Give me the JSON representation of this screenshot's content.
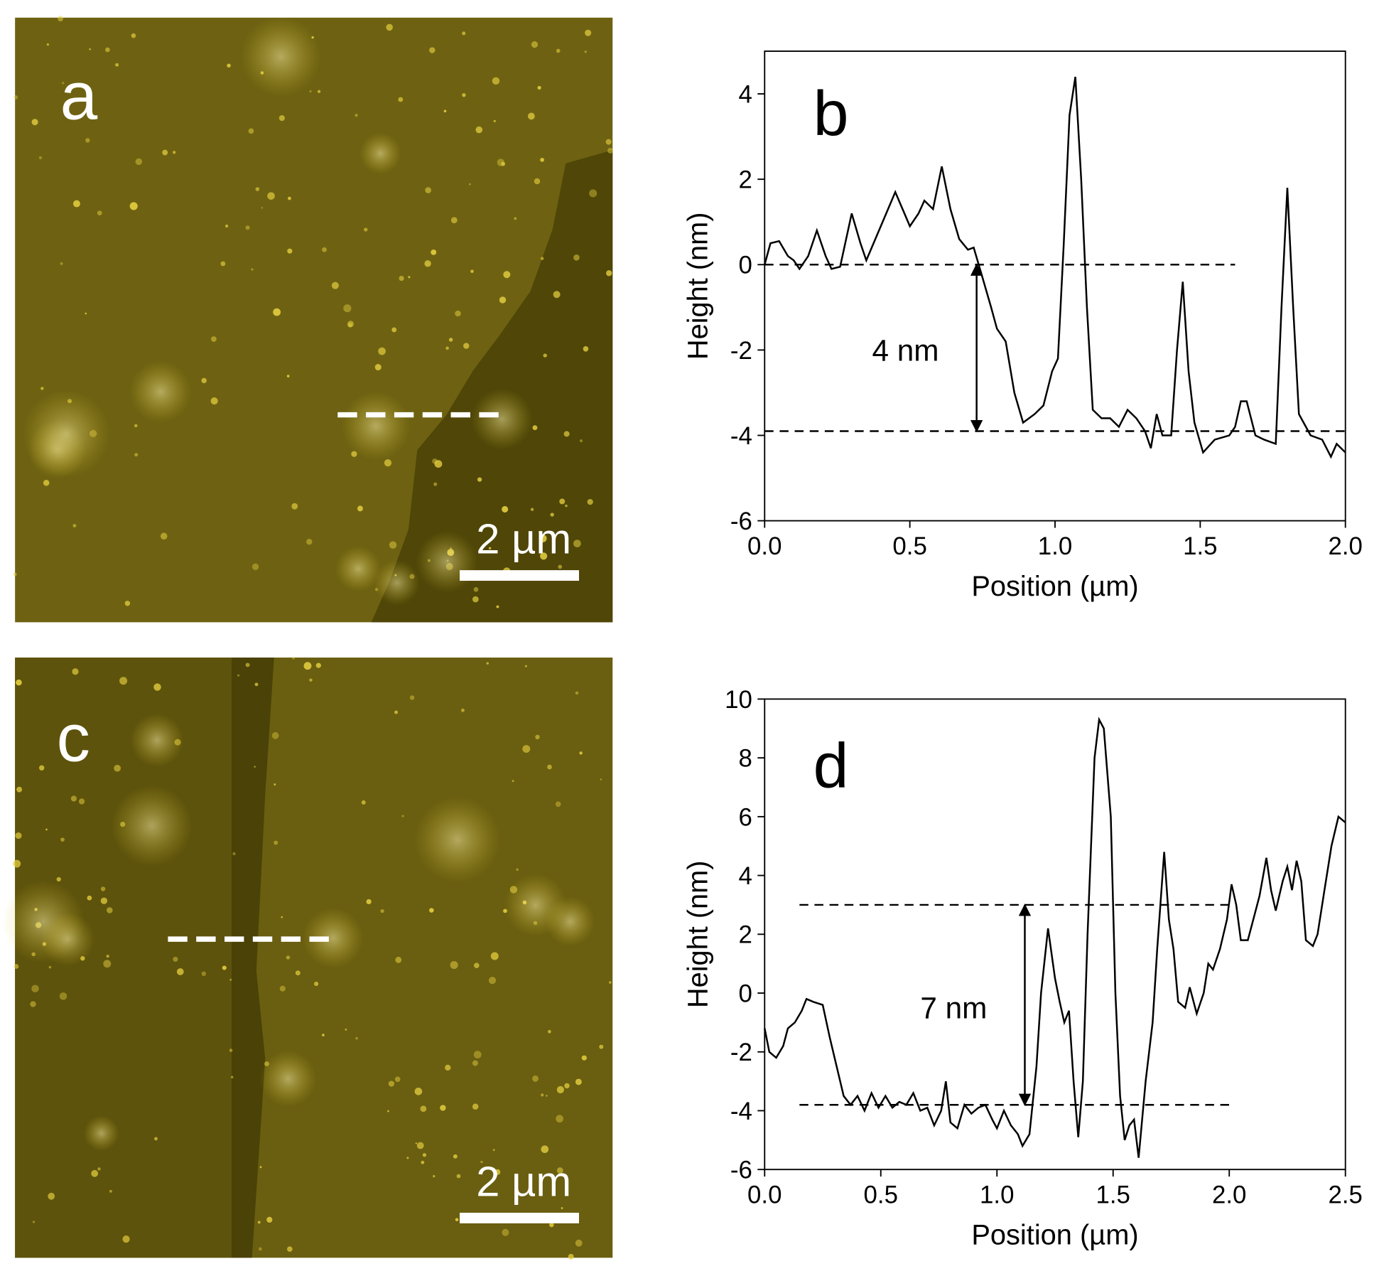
{
  "images": [
    {
      "label": "a",
      "scale_bar": "2 µm"
    },
    {
      "label": "c",
      "scale_bar": "2 µm"
    }
  ],
  "chart_data": [
    {
      "type": "line",
      "panel_label": "b",
      "xlabel": "Position (µm)",
      "ylabel": "Height (nm)",
      "color": "#000000",
      "xlim": [
        0,
        2
      ],
      "ylim": [
        -6,
        5
      ],
      "xticks": [
        {
          "value": 0,
          "label": "0.0"
        },
        0.5,
        {
          "value": 1,
          "label": "1.0"
        },
        1.5,
        {
          "value": 2,
          "label": "2.0"
        }
      ],
      "yticks": [
        -6,
        -4,
        -2,
        0,
        2,
        4
      ],
      "x": [
        0,
        0.02,
        0.05,
        0.08,
        0.1,
        0.12,
        0.15,
        0.18,
        0.21,
        0.23,
        0.26,
        0.3,
        0.33,
        0.35,
        0.4,
        0.45,
        0.5,
        0.53,
        0.55,
        0.58,
        0.61,
        0.64,
        0.67,
        0.7,
        0.72,
        0.75,
        0.78,
        0.8,
        0.83,
        0.86,
        0.89,
        0.93,
        0.96,
        0.99,
        1.01,
        1.03,
        1.05,
        1.07,
        1.09,
        1.11,
        1.13,
        1.16,
        1.19,
        1.22,
        1.25,
        1.28,
        1.31,
        1.33,
        1.35,
        1.37,
        1.4,
        1.42,
        1.44,
        1.46,
        1.48,
        1.51,
        1.55,
        1.6,
        1.62,
        1.64,
        1.66,
        1.69,
        1.72,
        1.76,
        1.78,
        1.8,
        1.82,
        1.84,
        1.88,
        1.92,
        1.95,
        1.97,
        2.0
      ],
      "values": [
        0,
        0.5,
        0.55,
        0.2,
        0.1,
        -0.1,
        0.2,
        0.8,
        0.2,
        -0.1,
        -0.05,
        1.2,
        0.5,
        0.1,
        0.9,
        1.7,
        0.9,
        1.2,
        1.5,
        1.3,
        2.3,
        1.3,
        0.6,
        0.35,
        0.4,
        -0.3,
        -1.0,
        -1.5,
        -1.8,
        -3.0,
        -3.7,
        -3.5,
        -3.3,
        -2.5,
        -2.2,
        0.5,
        3.5,
        4.4,
        2.0,
        -1.0,
        -3.4,
        -3.6,
        -3.6,
        -3.8,
        -3.4,
        -3.6,
        -3.9,
        -4.3,
        -3.5,
        -4.0,
        -4.0,
        -2.0,
        -0.4,
        -2.5,
        -3.7,
        -4.4,
        -4.1,
        -4.0,
        -3.8,
        -3.2,
        -3.2,
        -4.0,
        -4.1,
        -4.2,
        -1.0,
        1.8,
        -1.0,
        -3.5,
        -4.0,
        -4.1,
        -4.5,
        -4.2,
        -4.4
      ],
      "reference_lines": [
        {
          "y": 0,
          "x": [
            0,
            1.62
          ]
        },
        {
          "y": -3.9,
          "x": [
            0,
            2.0
          ]
        }
      ],
      "arrow": {
        "x": 0.73,
        "y": [
          0,
          -3.9
        ]
      },
      "annotation": {
        "text": "4 nm",
        "x": 0.37,
        "y": -2
      }
    },
    {
      "type": "line",
      "panel_label": "d",
      "xlabel": "Position (µm)",
      "ylabel": "Height (nm)",
      "color": "#000000",
      "xlim": [
        0,
        2.5
      ],
      "ylim": [
        -6,
        10
      ],
      "xticks": [
        {
          "value": 0,
          "label": "0.0"
        },
        0.5,
        {
          "value": 1,
          "label": "1.0"
        },
        1.5,
        {
          "value": 2,
          "label": "2.0"
        },
        2.5
      ],
      "yticks": [
        -6,
        -4,
        -2,
        0,
        2,
        4,
        6,
        8,
        10
      ],
      "x": [
        0,
        0.02,
        0.05,
        0.08,
        0.1,
        0.13,
        0.16,
        0.18,
        0.21,
        0.25,
        0.28,
        0.31,
        0.34,
        0.37,
        0.4,
        0.43,
        0.46,
        0.49,
        0.52,
        0.55,
        0.58,
        0.61,
        0.64,
        0.67,
        0.7,
        0.73,
        0.76,
        0.78,
        0.8,
        0.83,
        0.86,
        0.89,
        0.92,
        0.95,
        0.98,
        1.0,
        1.03,
        1.06,
        1.09,
        1.11,
        1.14,
        1.17,
        1.19,
        1.22,
        1.25,
        1.27,
        1.29,
        1.31,
        1.33,
        1.35,
        1.37,
        1.39,
        1.42,
        1.44,
        1.46,
        1.49,
        1.51,
        1.53,
        1.55,
        1.57,
        1.59,
        1.61,
        1.64,
        1.67,
        1.69,
        1.72,
        1.74,
        1.76,
        1.78,
        1.81,
        1.83,
        1.86,
        1.89,
        1.91,
        1.93,
        1.96,
        1.99,
        2.01,
        2.03,
        2.05,
        2.08,
        2.1,
        2.13,
        2.16,
        2.18,
        2.2,
        2.23,
        2.25,
        2.27,
        2.29,
        2.31,
        2.33,
        2.36,
        2.38,
        2.41,
        2.44,
        2.47,
        2.5
      ],
      "values": [
        -1.2,
        -2.0,
        -2.2,
        -1.8,
        -1.2,
        -1.0,
        -0.6,
        -0.2,
        -0.3,
        -0.4,
        -1.5,
        -2.5,
        -3.5,
        -3.8,
        -3.5,
        -4.0,
        -3.4,
        -3.9,
        -3.5,
        -3.9,
        -3.7,
        -3.8,
        -3.4,
        -4.0,
        -3.9,
        -4.5,
        -4.0,
        -3.0,
        -4.4,
        -4.6,
        -3.8,
        -4.1,
        -3.9,
        -3.8,
        -4.3,
        -4.6,
        -4.0,
        -4.5,
        -4.8,
        -5.2,
        -4.8,
        -2.5,
        0.0,
        2.2,
        0.5,
        -0.3,
        -1.0,
        -0.6,
        -3.0,
        -4.9,
        -3.0,
        2.0,
        8.0,
        9.3,
        9.0,
        6.0,
        0.0,
        -3.5,
        -5.0,
        -4.5,
        -4.3,
        -5.6,
        -3.0,
        -1.0,
        1.5,
        4.8,
        2.5,
        1.5,
        -0.3,
        -0.5,
        0.2,
        -0.7,
        0.0,
        1.0,
        0.8,
        1.5,
        2.5,
        3.7,
        3.0,
        1.8,
        1.8,
        2.4,
        3.3,
        4.6,
        3.5,
        2.8,
        3.8,
        4.3,
        3.5,
        4.5,
        3.8,
        1.8,
        1.6,
        2.0,
        3.5,
        5.0,
        6.0,
        5.8
      ],
      "reference_lines": [
        {
          "y": 3,
          "x": [
            0.15,
            2.0
          ]
        },
        {
          "y": -3.8,
          "x": [
            0.15,
            2.0
          ]
        }
      ],
      "arrow": {
        "x": 1.12,
        "y": [
          3,
          -3.8
        ]
      },
      "annotation": {
        "text": "7 nm",
        "x": 0.67,
        "y": -0.5
      }
    }
  ]
}
